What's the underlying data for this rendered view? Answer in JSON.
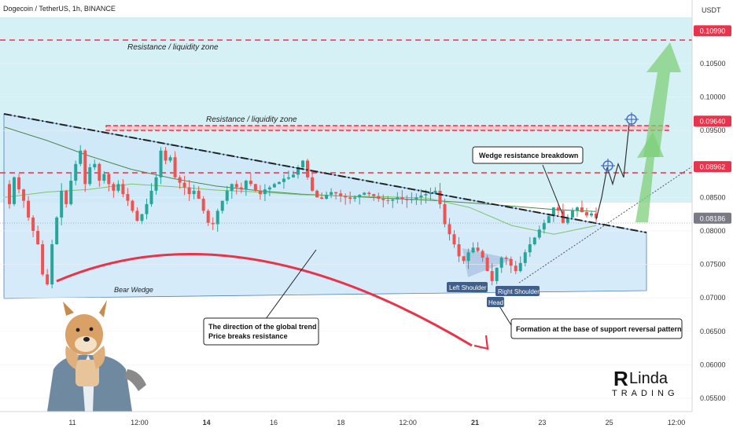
{
  "header": {
    "symbol_title": "Dogecoin / TetherUS, 1h, BINANCE",
    "currency": "USDT"
  },
  "colors": {
    "background": "#ffffff",
    "upper_zone": "#d6f1f6",
    "wedge_fill": "#cfe8f8",
    "resistance_red": "#e8334a",
    "candle_up": "#26a69a",
    "candle_down": "#ef5350",
    "trend_black": "#222222",
    "ma_dark": "#4a8a4a",
    "ma_light": "#7cc46a",
    "arrow_green": "#7fcf7a",
    "curve_red": "#e8334a",
    "price_tag_red": "#e8334a",
    "price_tag_gray": "#787b86"
  },
  "chart_data": {
    "type": "candlestick",
    "title": "Dogecoin / TetherUS, 1h, BINANCE",
    "y_unit": "USDT",
    "ylim": [
      0.053,
      0.1145
    ],
    "y_ticks": [
      "0.10500",
      "0.10000",
      "0.09500",
      "0.08500",
      "0.08000",
      "0.07500",
      "0.07000",
      "0.06500",
      "0.06000",
      "0.05500"
    ],
    "x_ticks": [
      "11",
      "12:00",
      "14",
      "16",
      "18",
      "12:00",
      "21",
      "23",
      "25",
      "12:00"
    ],
    "x_ticks_bold": [
      "14",
      "21"
    ],
    "price_tags": [
      {
        "label": "0.10990",
        "value": 0.1099,
        "style": "red"
      },
      {
        "label": "0.09640",
        "value": 0.0964,
        "style": "red"
      },
      {
        "label": "0.08962",
        "value": 0.0896,
        "style": "red"
      },
      {
        "label": "0.08186",
        "value": 0.0819,
        "style": "gray"
      }
    ],
    "levels": [
      {
        "name": "Resistance / liquidity zone",
        "value": 0.1099,
        "style": "dashed-red"
      },
      {
        "name": "Resistance / liquidity zone",
        "value": 0.0964,
        "style": "band-red"
      },
      {
        "name": "",
        "value": 0.0896,
        "style": "dashed-red"
      }
    ],
    "wedge": {
      "label": "Bear Wedge",
      "upper": [
        0.0985,
        0.0805
      ],
      "lower": [
        0.071,
        0.0718
      ]
    },
    "price_path": [
      0.087,
      0.084,
      0.088,
      0.0862,
      0.0845,
      0.082,
      0.08,
      0.078,
      0.0735,
      0.072,
      0.078,
      0.082,
      0.086,
      0.084,
      0.0875,
      0.09,
      0.092,
      0.087,
      0.0895,
      0.09,
      0.0875,
      0.0885,
      0.087,
      0.086,
      0.087,
      0.0855,
      0.0845,
      0.083,
      0.0815,
      0.0825,
      0.084,
      0.086,
      0.088,
      0.092,
      0.0905,
      0.091,
      0.088,
      0.0872,
      0.0865,
      0.0855,
      0.086,
      0.0848,
      0.083,
      0.0812,
      0.081,
      0.083,
      0.0845,
      0.086,
      0.087,
      0.0865,
      0.0862,
      0.0875,
      0.087,
      0.086,
      0.0855,
      0.0862,
      0.0865,
      0.087,
      0.0873,
      0.0878,
      0.088,
      0.0884,
      0.0895,
      0.0905,
      0.088,
      0.086,
      0.085,
      0.0848,
      0.0854,
      0.0858,
      0.0856,
      0.0852,
      0.085,
      0.0848,
      0.085,
      0.0854,
      0.0857,
      0.0855,
      0.0852,
      0.0848,
      0.0846,
      0.0845,
      0.0847,
      0.085,
      0.0848,
      0.0846,
      0.0847,
      0.085,
      0.0853,
      0.0855,
      0.0857,
      0.086,
      0.084,
      0.081,
      0.0795,
      0.078,
      0.0762,
      0.0755,
      0.0768,
      0.0775,
      0.077,
      0.076,
      0.074,
      0.0725,
      0.0745,
      0.076,
      0.0758,
      0.0748,
      0.074,
      0.0752,
      0.0768,
      0.078,
      0.079,
      0.0802,
      0.0812,
      0.0822,
      0.0835,
      0.083,
      0.0812,
      0.082,
      0.083,
      0.0835,
      0.0828,
      0.0823,
      0.0826,
      0.0819
    ],
    "ma_dark": [
      0.0955,
      0.0935,
      0.0912,
      0.0892,
      0.0878,
      0.0867,
      0.086,
      0.0855,
      0.0852,
      0.0849,
      0.0846,
      0.0842,
      0.0837,
      0.0832,
      0.0829
    ],
    "ma_light": [
      0.085,
      0.0858,
      0.0862,
      0.087,
      0.0866,
      0.0861,
      0.0858,
      0.0854,
      0.0852,
      0.0851,
      0.0849,
      0.0835,
      0.0808,
      0.0795,
      0.0808
    ],
    "projection": [
      0.0817,
      0.085,
      0.0895,
      0.087,
      0.09,
      0.088,
      0.096
    ],
    "target_markers": [
      0.0898,
      0.0983
    ]
  },
  "annotations": {
    "resistance_top": "Resistance / liquidity zone",
    "resistance_mid": "Resistance / liquidity zone",
    "bear_wedge": "Bear Wedge",
    "wedge_breakdown": "Wedge resistance breakdown",
    "left_shoulder": "Left Shoulder",
    "head": "Head",
    "right_shoulder": "Right Shoulder",
    "global_trend_line1": "The direction of the global trend",
    "global_trend_line2": "Price breaks resistance",
    "formation": "Formation at the base of support reversal pattern"
  },
  "logo": {
    "brand_top": "Linda",
    "brand_bottom": "TRADING",
    "icon": "doge-mascot"
  }
}
